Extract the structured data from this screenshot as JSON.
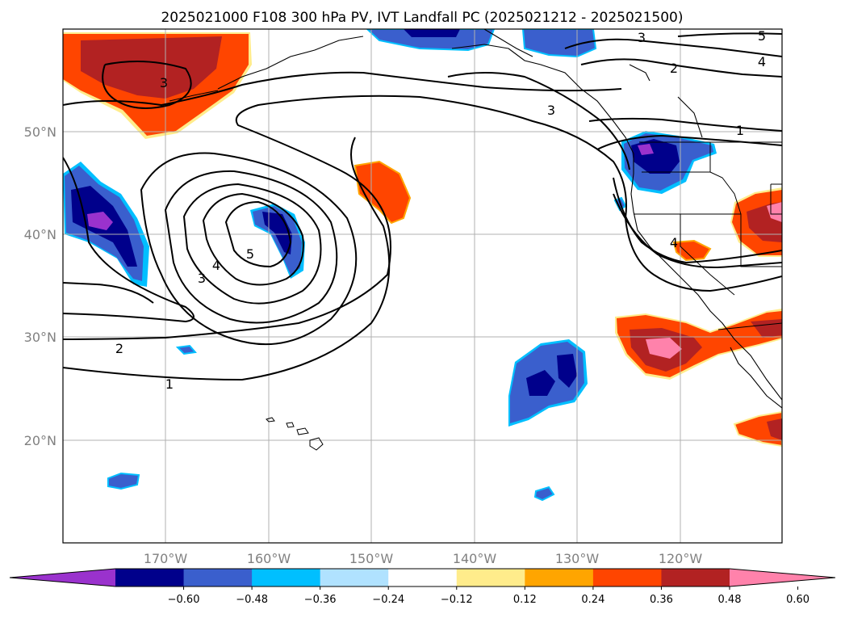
{
  "title": "2025021000 F108 300 hPa PV, IVT Landfall PC (2025021212 - 2025021500)",
  "map": {
    "lat_labels": [
      "50°N",
      "40°N",
      "30°N",
      "20°N"
    ],
    "lon_labels": [
      "170°W",
      "160°W",
      "150°W",
      "140°W",
      "130°W",
      "120°W"
    ],
    "contour_labels": [
      "3",
      "3",
      "3",
      "2",
      "5",
      "4",
      "1",
      "5",
      "4",
      "3",
      "2",
      "1",
      "4"
    ]
  },
  "colorbar": {
    "ticks": [
      "−0.60",
      "−0.48",
      "−0.36",
      "−0.24",
      "−0.12",
      "0.12",
      "0.24",
      "0.36",
      "0.48",
      "0.60"
    ],
    "colors": [
      "#9a32cd",
      "#00008b",
      "#3a5fcd",
      "#00bfff",
      "#b0e2ff",
      "#ffffff",
      "#ffec8b",
      "#ffa500",
      "#ff4500",
      "#b22222",
      "#ff82ab"
    ]
  }
}
